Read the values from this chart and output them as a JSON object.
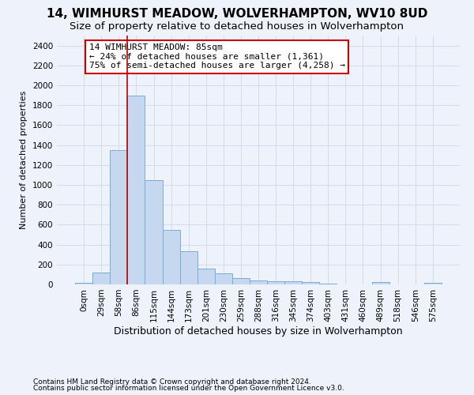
{
  "title": "14, WIMHURST MEADOW, WOLVERHAMPTON, WV10 8UD",
  "subtitle": "Size of property relative to detached houses in Wolverhampton",
  "xlabel": "Distribution of detached houses by size in Wolverhampton",
  "ylabel": "Number of detached properties",
  "footnote1": "Contains HM Land Registry data © Crown copyright and database right 2024.",
  "footnote2": "Contains public sector information licensed under the Open Government Licence v3.0.",
  "bar_labels": [
    "0sqm",
    "29sqm",
    "58sqm",
    "86sqm",
    "115sqm",
    "144sqm",
    "173sqm",
    "201sqm",
    "230sqm",
    "259sqm",
    "288sqm",
    "316sqm",
    "345sqm",
    "374sqm",
    "403sqm",
    "431sqm",
    "460sqm",
    "489sqm",
    "518sqm",
    "546sqm",
    "575sqm"
  ],
  "bar_values": [
    15,
    120,
    1350,
    1900,
    1045,
    545,
    335,
    160,
    110,
    65,
    40,
    30,
    28,
    20,
    8,
    0,
    0,
    20,
    0,
    0,
    15
  ],
  "bar_color": "#c5d8ef",
  "bar_edgecolor": "#7aadd4",
  "bar_linewidth": 0.7,
  "grid_color": "#d0d8e8",
  "background_color": "#edf2fb",
  "vline_x_index": 3,
  "vline_color": "#bb0000",
  "ylim": [
    0,
    2500
  ],
  "yticks": [
    0,
    200,
    400,
    600,
    800,
    1000,
    1200,
    1400,
    1600,
    1800,
    2000,
    2200,
    2400
  ],
  "annotation_title": "14 WIMHURST MEADOW: 85sqm",
  "annotation_line2": "← 24% of detached houses are smaller (1,361)",
  "annotation_line3": "75% of semi-detached houses are larger (4,258) →",
  "annotation_box_color": "#ffffff",
  "annotation_box_edgecolor": "#cc0000",
  "title_fontsize": 11,
  "subtitle_fontsize": 9.5,
  "xlabel_fontsize": 9,
  "ylabel_fontsize": 8,
  "tick_fontsize": 7.5,
  "annotation_fontsize": 8,
  "footnote_fontsize": 6.5
}
